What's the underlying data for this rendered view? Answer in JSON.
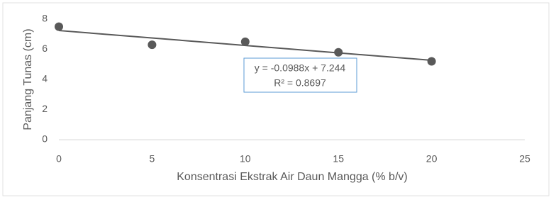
{
  "chart_data": {
    "type": "scatter",
    "x_label": "Konsentrasi Ekstrak Air Daun Mangga (% b/v)",
    "y_label": "Panjang Tunas (cm)",
    "series": [
      {
        "color": "#595959",
        "x": [
          0,
          5,
          10,
          15,
          20
        ],
        "values": [
          7.5,
          6.3,
          6.5,
          5.8,
          5.2
        ]
      }
    ],
    "trendline": {
      "slope": -0.0988,
      "intercept": 7.244,
      "equation": "y = -0.0988x + 7.244",
      "r2": "R² = 0.8697",
      "color": "#595959"
    },
    "xlim": [
      0,
      25
    ],
    "xticks": [
      0,
      5,
      10,
      15,
      20,
      25
    ],
    "ylim": [
      0,
      8
    ],
    "yticks": [
      0,
      2,
      4,
      6,
      8
    ],
    "grid": false
  }
}
